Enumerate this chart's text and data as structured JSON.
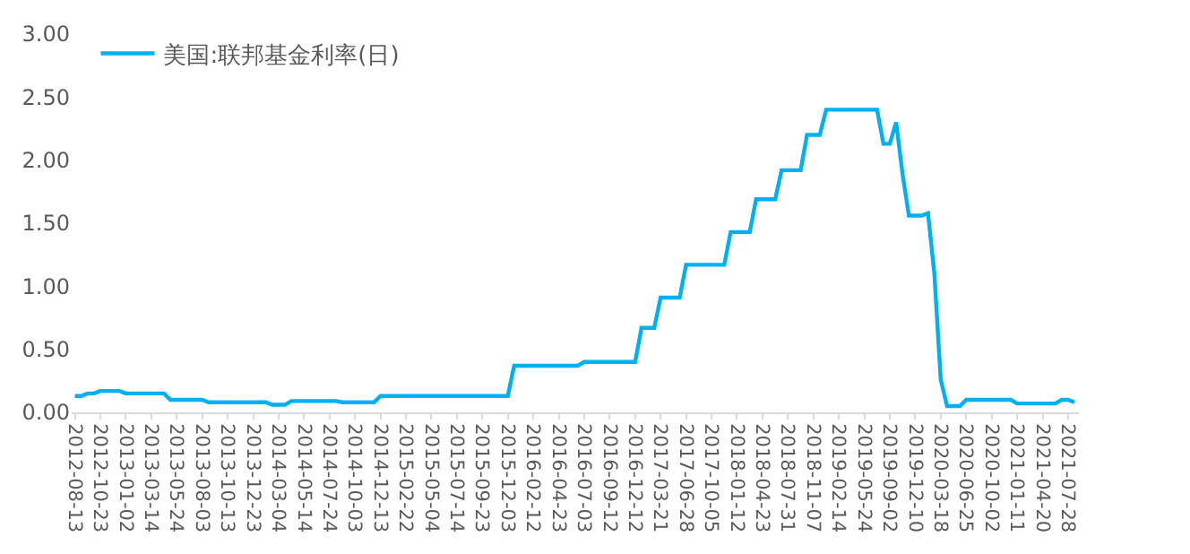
{
  "chart_data": {
    "type": "line",
    "categories": [
      "2012-08-13",
      null,
      null,
      null,
      "2012-10-23",
      null,
      null,
      null,
      "2013-01-02",
      null,
      null,
      null,
      "2013-03-14",
      null,
      null,
      null,
      "2013-05-24",
      null,
      null,
      null,
      "2013-08-03",
      null,
      null,
      null,
      "2013-10-13",
      null,
      null,
      null,
      "2013-12-23",
      null,
      null,
      null,
      "2014-03-04",
      null,
      null,
      null,
      "2014-05-14",
      null,
      null,
      null,
      "2014-07-24",
      null,
      null,
      null,
      "2014-10-03",
      null,
      null,
      null,
      "2014-12-13",
      null,
      null,
      null,
      "2015-02-22",
      null,
      null,
      null,
      "2015-05-04",
      null,
      null,
      null,
      "2015-07-14",
      null,
      null,
      null,
      "2015-09-23",
      null,
      null,
      null,
      "2015-12-03",
      null,
      null,
      null,
      "2016-02-12",
      null,
      null,
      null,
      "2016-04-23",
      null,
      null,
      null,
      "2016-07-03",
      null,
      null,
      null,
      "2016-09-12",
      null,
      null,
      null,
      "2016-12-12",
      null,
      null,
      null,
      "2017-03-21",
      null,
      null,
      null,
      "2017-06-28",
      null,
      null,
      null,
      "2017-10-05",
      null,
      null,
      null,
      "2018-01-12",
      null,
      null,
      null,
      "2018-04-23",
      null,
      null,
      null,
      "2018-07-31",
      null,
      null,
      null,
      "2018-11-07",
      null,
      null,
      null,
      "2019-02-14",
      null,
      null,
      null,
      "2019-05-24",
      null,
      null,
      null,
      "2019-09-02",
      null,
      null,
      null,
      "2019-12-10",
      null,
      null,
      null,
      "2020-03-18",
      null,
      null,
      null,
      "2020-06-25",
      null,
      null,
      null,
      "2020-10-02",
      null,
      null,
      null,
      "2021-01-11",
      null,
      null,
      null,
      "2021-04-20",
      null,
      null,
      null,
      "2021-07-28",
      null
    ],
    "series": [
      {
        "name": "美国:联邦基金利率(日)",
        "color": "#00b0f0",
        "values": [
          0.13,
          0.13,
          0.15,
          0.15,
          0.17,
          0.17,
          0.17,
          0.17,
          0.15,
          0.15,
          0.15,
          0.15,
          0.15,
          0.15,
          0.15,
          0.1,
          0.1,
          0.1,
          0.1,
          0.1,
          0.1,
          0.08,
          0.08,
          0.08,
          0.08,
          0.08,
          0.08,
          0.08,
          0.08,
          0.08,
          0.08,
          0.06,
          0.06,
          0.06,
          0.09,
          0.09,
          0.09,
          0.09,
          0.09,
          0.09,
          0.09,
          0.09,
          0.08,
          0.08,
          0.08,
          0.08,
          0.08,
          0.08,
          0.13,
          0.13,
          0.13,
          0.13,
          0.13,
          0.13,
          0.13,
          0.13,
          0.13,
          0.13,
          0.13,
          0.13,
          0.13,
          0.13,
          0.13,
          0.13,
          0.13,
          0.13,
          0.13,
          0.13,
          0.13,
          0.37,
          0.37,
          0.37,
          0.37,
          0.37,
          0.37,
          0.37,
          0.37,
          0.37,
          0.37,
          0.37,
          0.4,
          0.4,
          0.4,
          0.4,
          0.4,
          0.4,
          0.4,
          0.4,
          0.4,
          0.67,
          0.67,
          0.67,
          0.91,
          0.91,
          0.91,
          0.91,
          1.17,
          1.17,
          1.17,
          1.17,
          1.17,
          1.17,
          1.17,
          1.43,
          1.43,
          1.43,
          1.43,
          1.69,
          1.69,
          1.69,
          1.69,
          1.92,
          1.92,
          1.92,
          1.92,
          2.2,
          2.2,
          2.2,
          2.4,
          2.4,
          2.4,
          2.4,
          2.4,
          2.4,
          2.4,
          2.4,
          2.4,
          2.13,
          2.13,
          2.3,
          1.89,
          1.56,
          1.56,
          1.56,
          1.58,
          1.1,
          0.26,
          0.05,
          0.05,
          0.05,
          0.1,
          0.1,
          0.1,
          0.1,
          0.1,
          0.1,
          0.1,
          0.1,
          0.07,
          0.07,
          0.07,
          0.07,
          0.07,
          0.07,
          0.07,
          0.1,
          0.1,
          0.08
        ]
      }
    ],
    "ylim": [
      0,
      3
    ],
    "yticks": [
      {
        "value": 0,
        "label": "0.00"
      },
      {
        "value": 0.5,
        "label": "0.50"
      },
      {
        "value": 1,
        "label": "1.00"
      },
      {
        "value": 1.5,
        "label": "1.50"
      },
      {
        "value": 2,
        "label": "2.00"
      },
      {
        "value": 2.5,
        "label": "2.50"
      },
      {
        "value": 3,
        "label": "3.00"
      }
    ],
    "grid": false,
    "legend": "top left",
    "marker": "none",
    "line_style": "solid"
  }
}
